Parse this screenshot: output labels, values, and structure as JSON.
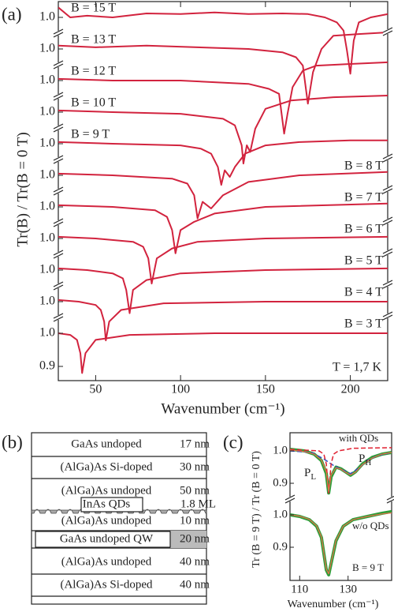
{
  "chart_data": [
    {
      "type": "line",
      "panel_label": "(a)",
      "ylabel": "Tr(B) / Tr(B = 0 T)",
      "xlabel": "Wavenumber (cm⁻¹)",
      "annotation": "T = 1,7 K",
      "xlim": [
        28,
        222
      ],
      "xticks": [
        50,
        100,
        150,
        200
      ],
      "color": "#d2233e",
      "series": [
        {
          "name": "B = 15 T",
          "yticks": [
            {
              "value": 1,
              "label": "1.0"
            }
          ],
          "x": [
            28,
            35,
            45,
            60,
            80,
            100,
            120,
            140,
            160,
            175,
            185,
            192,
            196,
            198,
            200,
            202,
            205,
            212,
            222
          ],
          "values": [
            1.03,
            1.0,
            1.005,
            1.0,
            1.012,
            1.01,
            1.015,
            1.01,
            1.012,
            1.01,
            1.0,
            0.985,
            0.96,
            0.9,
            0.83,
            0.93,
            0.985,
            1.0,
            1.01
          ]
        },
        {
          "name": "B = 13 T",
          "yticks": [
            {
              "value": 1,
              "label": "1.0"
            }
          ],
          "x": [
            28,
            50,
            80,
            110,
            140,
            160,
            168,
            172,
            175,
            178,
            183,
            190,
            205,
            222
          ],
          "values": [
            1.01,
            1.005,
            1.01,
            1.005,
            1.0,
            0.99,
            0.975,
            0.95,
            0.835,
            0.93,
            1.0,
            1.04,
            1.045,
            1.05
          ]
        },
        {
          "name": "B = 12 T",
          "yticks": [
            {
              "value": 1,
              "label": "1.0"
            }
          ],
          "x": [
            28,
            60,
            100,
            140,
            152,
            158,
            161,
            163,
            166,
            172,
            180,
            200,
            222
          ],
          "values": [
            1.005,
            1.0,
            1.0,
            0.99,
            0.975,
            0.96,
            0.84,
            0.9,
            0.98,
            1.03,
            1.045,
            1.05,
            1.055
          ]
        },
        {
          "name": "B = 10 T",
          "yticks": [
            {
              "value": 1,
              "label": "1.0"
            }
          ],
          "x": [
            28,
            60,
            100,
            125,
            132,
            136,
            137,
            139,
            141,
            144,
            150,
            165,
            190,
            222
          ],
          "values": [
            1.005,
            1.0,
            0.995,
            0.98,
            0.96,
            0.9,
            0.845,
            0.9,
            0.88,
            0.95,
            1.01,
            1.035,
            1.045,
            1.05
          ]
        },
        {
          "name": "B = 9 T",
          "yticks": [
            {
              "value": 1,
              "label": "1.0"
            }
          ],
          "x": [
            28,
            60,
            100,
            112,
            118,
            122,
            124,
            126,
            129,
            132,
            138,
            150,
            170,
            200,
            222
          ],
          "values": [
            1.005,
            1.0,
            0.995,
            0.985,
            0.97,
            0.93,
            0.876,
            0.92,
            0.9,
            0.93,
            0.97,
            0.995,
            1.005,
            1.01,
            1.01
          ]
        },
        {
          "name": "B = 8 T",
          "yticks": [
            {
              "value": 1,
              "label": "1.0"
            }
          ],
          "x": [
            28,
            60,
            95,
            104,
            108,
            110,
            113,
            118,
            125,
            140,
            170,
            222
          ],
          "values": [
            1.005,
            1.0,
            0.99,
            0.975,
            0.94,
            0.87,
            0.92,
            0.9,
            0.94,
            0.98,
            1.0,
            1.01
          ]
        },
        {
          "name": "B = 7 T",
          "yticks": [
            {
              "value": 1,
              "label": "1.0"
            }
          ],
          "x": [
            28,
            60,
            85,
            92,
            95,
            97,
            100,
            108,
            120,
            150,
            222
          ],
          "values": [
            1.005,
            1.0,
            0.99,
            0.97,
            0.93,
            0.86,
            0.93,
            0.955,
            0.98,
            1.0,
            1.01
          ]
        },
        {
          "name": "B = 6 T",
          "yticks": [
            {
              "value": 1,
              "label": "1.0"
            }
          ],
          "x": [
            28,
            50,
            72,
            78,
            81,
            83,
            86,
            95,
            110,
            150,
            222
          ],
          "values": [
            1.005,
            1.0,
            0.99,
            0.975,
            0.94,
            0.864,
            0.94,
            0.97,
            0.99,
            1.0,
            1.005
          ]
        },
        {
          "name": "B = 5 T",
          "yticks": [
            {
              "value": 1,
              "label": "1.0"
            }
          ],
          "x": [
            28,
            45,
            60,
            66,
            68,
            70,
            72,
            80,
            100,
            150,
            222
          ],
          "values": [
            1.005,
            1.0,
            0.99,
            0.975,
            0.94,
            0.87,
            0.94,
            0.97,
            0.99,
            1.0,
            1.005
          ]
        },
        {
          "name": "B = 4 T",
          "yticks": [
            {
              "value": 1,
              "label": "1.0"
            }
          ],
          "x": [
            28,
            40,
            50,
            53,
            55,
            56,
            58,
            65,
            90,
            150,
            222
          ],
          "values": [
            1.005,
            1.0,
            0.99,
            0.975,
            0.94,
            0.883,
            0.94,
            0.975,
            0.995,
            1.0,
            1.0
          ]
        },
        {
          "name": "B = 3 T",
          "yticks": [
            {
              "value": 1,
              "label": "1.0"
            },
            {
              "value": 0.9,
              "label": "0.9"
            }
          ],
          "x": [
            28,
            35,
            39,
            41,
            42,
            44,
            50,
            70,
            120,
            222
          ],
          "values": [
            1.0,
            0.995,
            0.98,
            0.94,
            0.88,
            0.94,
            0.98,
            0.995,
            1.0,
            1.0
          ]
        }
      ]
    },
    {
      "type": "line",
      "panel_label": "(c)",
      "ylabel": "Tr (B = 9 T) / Tr (B = 0 T)",
      "xlabel": "Wavenumber (cm⁻¹)",
      "xlim": [
        106,
        148
      ],
      "xticks": [
        110,
        130
      ],
      "panels": [
        {
          "yticks": [
            {
              "value": 1,
              "label": "1.0"
            },
            {
              "value": 0.9,
              "label": "0.9"
            }
          ],
          "annotations": [
            "with QDs",
            {
              "main": "P",
              "sub": "L"
            },
            {
              "main": "P",
              "sub": "H"
            }
          ],
          "series": [
            {
              "color": "#2e9e3a",
              "width": 4,
              "dash": false,
              "x": [
                106,
                112,
                116,
                119,
                121,
                122,
                123,
                125,
                127,
                129,
                131,
                133,
                136,
                140,
                144,
                148
              ],
              "values": [
                1.005,
                1.0,
                0.99,
                0.97,
                0.93,
                0.87,
                0.92,
                0.95,
                0.945,
                0.935,
                0.925,
                0.935,
                0.96,
                0.98,
                0.99,
                0.995
              ]
            },
            {
              "color": "#3050c0",
              "width": 1.5,
              "dash": true,
              "x": [
                106,
                115,
                120,
                124,
                128,
                131,
                134,
                138,
                142,
                148
              ],
              "values": [
                1.0,
                0.995,
                0.975,
                0.955,
                0.94,
                0.93,
                0.945,
                0.97,
                0.985,
                0.995
              ]
            },
            {
              "color": "#e02030",
              "width": 1.5,
              "dash": true,
              "x": [
                106,
                118,
                120,
                121,
                122,
                123,
                124,
                126,
                132,
                148
              ],
              "values": [
                1.005,
                1.0,
                0.99,
                0.96,
                0.87,
                0.96,
                0.99,
                1.0,
                1.008,
                1.01
              ]
            },
            {
              "color": "#e8704a",
              "width": 1.2,
              "dash": false,
              "x": [
                106,
                112,
                116,
                119,
                121,
                122,
                123,
                125,
                127,
                129,
                131,
                133,
                136,
                140,
                144,
                148
              ],
              "values": [
                1.003,
                0.998,
                0.99,
                0.972,
                0.935,
                0.875,
                0.925,
                0.948,
                0.944,
                0.934,
                0.926,
                0.934,
                0.958,
                0.978,
                0.99,
                0.995
              ]
            }
          ]
        },
        {
          "yticks": [
            {
              "value": 1,
              "label": "1.0"
            },
            {
              "value": 0.9,
              "label": "0.9"
            }
          ],
          "annotations": [
            "w/o QDs",
            "B = 9 T"
          ],
          "series": [
            {
              "color": "#2e9e3a",
              "width": 4,
              "dash": false,
              "x": [
                106,
                110,
                114,
                117,
                119,
                120,
                121,
                122,
                123,
                125,
                128,
                132,
                138,
                144,
                148
              ],
              "values": [
                1.0,
                0.995,
                0.985,
                0.965,
                0.93,
                0.88,
                0.83,
                0.815,
                0.85,
                0.92,
                0.965,
                0.985,
                0.995,
                1.005,
                1.01
              ]
            },
            {
              "color": "#e8704a",
              "width": 1.2,
              "dash": false,
              "x": [
                106,
                110,
                114,
                117,
                119,
                120,
                121,
                122,
                123,
                125,
                128,
                132,
                138,
                144,
                148
              ],
              "values": [
                1.0,
                0.996,
                0.986,
                0.966,
                0.932,
                0.882,
                0.832,
                0.818,
                0.852,
                0.921,
                0.965,
                0.985,
                0.995,
                1.003,
                1.006
              ]
            }
          ]
        }
      ]
    }
  ],
  "layer_stack": {
    "panel_label": "(b)",
    "layers": [
      {
        "material": "GaAs undoped",
        "thickness": "17 nm"
      },
      {
        "material": "(AlGa)As Si-doped",
        "thickness": "30 nm"
      },
      {
        "material": "(AlGa)As undoped",
        "thickness": "50 nm"
      },
      {
        "material": "InAs QDs",
        "thickness": "1.8 ML"
      },
      {
        "material": "(AlGa)As undoped",
        "thickness": "10 nm"
      },
      {
        "material": "GaAs undoped QW",
        "thickness": "20 nm"
      },
      {
        "material": "(AlGa)As undoped",
        "thickness": "40 nm"
      },
      {
        "material": "(AlGa)As Si-doped",
        "thickness": "40 nm"
      }
    ]
  }
}
